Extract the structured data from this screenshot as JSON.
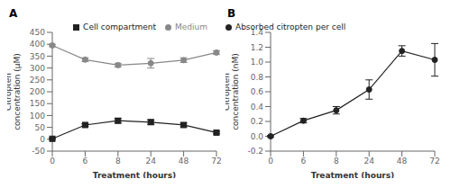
{
  "chart_data": [
    {
      "type": "line",
      "title": "A",
      "x_label": "Treatment (hours)",
      "y_label": "Citropten\nconcentration (μM)",
      "categories": [
        "0",
        "6",
        "8",
        "24",
        "48",
        "72"
      ],
      "series": [
        {
          "name": "Medium",
          "color": "#888888",
          "marker": "circle",
          "values": [
            395,
            335,
            312,
            320,
            333,
            365
          ],
          "error": [
            5,
            8,
            8,
            20,
            10,
            8
          ]
        },
        {
          "name": "Cell compartment",
          "color": "#222222",
          "marker": "square",
          "values": [
            2,
            60,
            78,
            72,
            60,
            28
          ],
          "error": [
            3,
            5,
            10,
            10,
            8,
            5
          ]
        }
      ],
      "ylim": [
        -50,
        450
      ],
      "yticks": [
        -50,
        0,
        50,
        100,
        150,
        200,
        250,
        300,
        350,
        400,
        450
      ],
      "legend": "upper right",
      "grid": false
    },
    {
      "type": "line",
      "title": "B",
      "x_label": "Treatment (hours)",
      "y_label": "Citropten\nconcentration (nM)",
      "categories": [
        "0",
        "6",
        "8",
        "24",
        "48",
        "72"
      ],
      "series": [
        {
          "name": "Absorbed citropten per cell",
          "color": "#222222",
          "marker": "circle",
          "values": [
            0.0,
            0.21,
            0.35,
            0.63,
            1.15,
            1.03
          ],
          "error": [
            0.01,
            0.03,
            0.05,
            0.13,
            0.07,
            0.22
          ]
        }
      ],
      "ylim": [
        -0.2,
        1.4
      ],
      "yticks": [
        {
          "value": -0.2,
          "label": "-0.2"
        },
        {
          "value": 0,
          "label": "0.0"
        },
        {
          "value": 0.2,
          "label": "0.2"
        },
        {
          "value": 0.4,
          "label": "0.4"
        },
        {
          "value": 0.6,
          "label": "0.6"
        },
        {
          "value": 0.8,
          "label": "0.8"
        },
        {
          "value": 1.0,
          "label": "1.0"
        },
        {
          "value": 1.2,
          "label": "1.2"
        },
        {
          "value": 1.4,
          "label": "1.4"
        }
      ],
      "legend": "upper left",
      "grid": false
    }
  ]
}
